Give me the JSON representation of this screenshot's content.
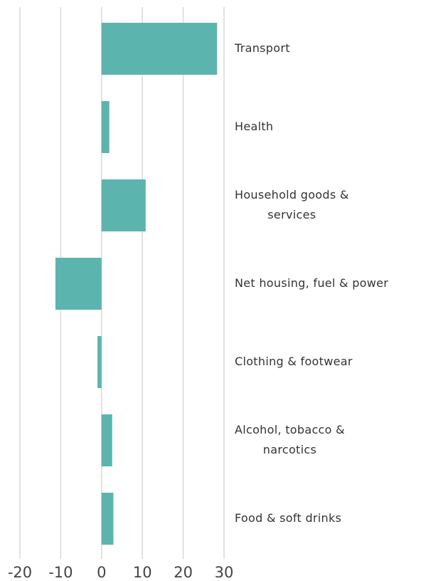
{
  "chart_data": {
    "type": "bar",
    "orientation": "horizontal",
    "categories": [
      "Transport",
      "Health",
      "Household goods &\nservices",
      "Net housing, fuel & power",
      "Clothing & footwear",
      "Alcohol, tobacco &\nnarcotics",
      "Food & soft drinks"
    ],
    "values": [
      28.3,
      1.9,
      10.8,
      -11.3,
      -1.0,
      2.6,
      2.9
    ],
    "color": "#5bb5ae",
    "xlim": [
      -20,
      30
    ],
    "xticks": [
      -20,
      -10,
      0,
      10,
      20,
      30
    ],
    "grid": true
  }
}
